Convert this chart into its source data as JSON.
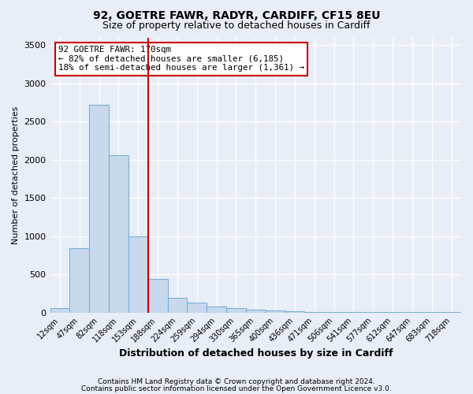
{
  "title1": "92, GOETRE FAWR, RADYR, CARDIFF, CF15 8EU",
  "title2": "Size of property relative to detached houses in Cardiff",
  "xlabel": "Distribution of detached houses by size in Cardiff",
  "ylabel": "Number of detached properties",
  "bar_labels": [
    "12sqm",
    "47sqm",
    "82sqm",
    "118sqm",
    "153sqm",
    "188sqm",
    "224sqm",
    "259sqm",
    "294sqm",
    "330sqm",
    "365sqm",
    "400sqm",
    "436sqm",
    "471sqm",
    "506sqm",
    "541sqm",
    "577sqm",
    "612sqm",
    "647sqm",
    "683sqm",
    "718sqm"
  ],
  "bar_values": [
    55,
    840,
    2720,
    2060,
    1000,
    440,
    195,
    130,
    75,
    55,
    35,
    25,
    15,
    8,
    5,
    4,
    3,
    2,
    2,
    1,
    1
  ],
  "bar_color": "#c8d9ee",
  "bar_edge_color": "#7aafd4",
  "vline_color": "#cc0000",
  "ylim": [
    0,
    3600
  ],
  "yticks": [
    0,
    500,
    1000,
    1500,
    2000,
    2500,
    3000,
    3500
  ],
  "annotation_text": "92 GOETRE FAWR: 170sqm\n← 82% of detached houses are smaller (6,185)\n18% of semi-detached houses are larger (1,361) →",
  "annotation_box_color": "#ffffff",
  "annotation_box_edge": "#cc0000",
  "footer1": "Contains HM Land Registry data © Crown copyright and database right 2024.",
  "footer2": "Contains public sector information licensed under the Open Government Licence v3.0.",
  "bg_color": "#e8eef7",
  "grid_color": "#ffffff"
}
